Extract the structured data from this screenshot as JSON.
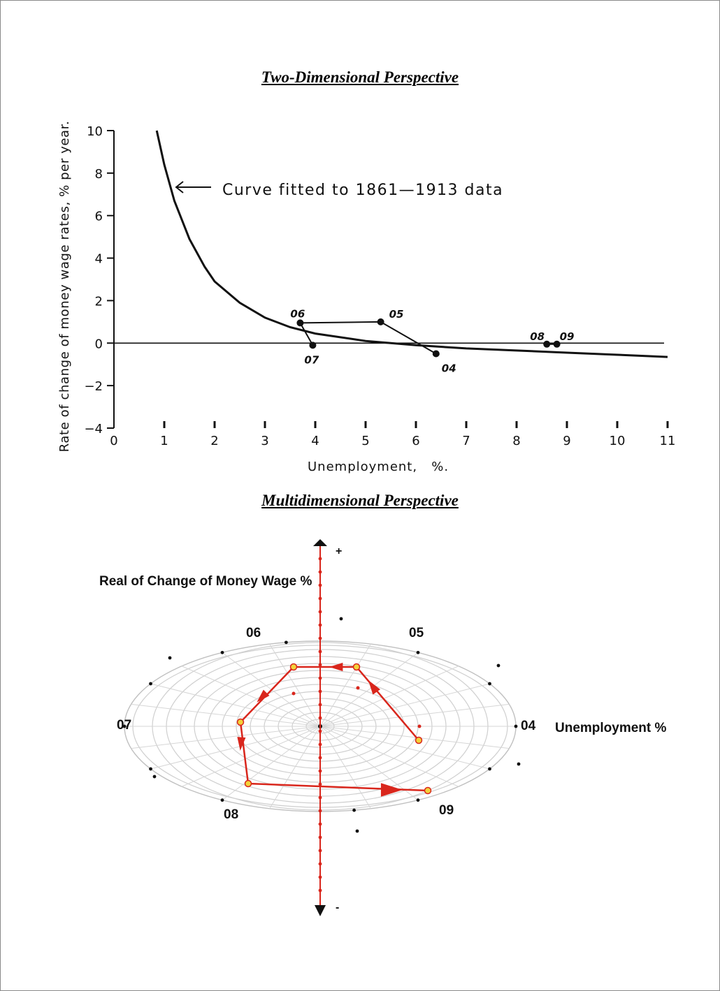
{
  "titles": {
    "top": "Two-Dimensional Perspective",
    "bottom": "Multidimensional Perspective"
  },
  "chart_data": [
    {
      "type": "line",
      "title": "Two-Dimensional Perspective",
      "xlabel": "Unemployment,   %.",
      "ylabel": "Rate of change of money wage rates, % per year.",
      "xlim": [
        0,
        11
      ],
      "ylim": [
        -4,
        10
      ],
      "x_ticks": [
        0,
        1,
        2,
        3,
        4,
        5,
        6,
        7,
        8,
        9,
        10,
        11
      ],
      "y_ticks": [
        10,
        8,
        6,
        4,
        2,
        0,
        -2,
        -4
      ],
      "grid": false,
      "annotation": "Curve fitted to 1861—1913 data",
      "fitted_curve": {
        "x": [
          0.85,
          1.0,
          1.2,
          1.5,
          1.8,
          2.0,
          2.5,
          3.0,
          3.5,
          4.0,
          5.0,
          6.0,
          7.0,
          8.0,
          9.0,
          10.0,
          11.0
        ],
        "y": [
          10.0,
          8.4,
          6.7,
          4.9,
          3.6,
          2.9,
          1.9,
          1.2,
          0.75,
          0.45,
          0.1,
          -0.1,
          -0.25,
          -0.35,
          -0.45,
          -0.55,
          -0.65
        ]
      },
      "observations": [
        {
          "label": "04",
          "x": 6.4,
          "y": -0.5
        },
        {
          "label": "05",
          "x": 5.3,
          "y": 1.0
        },
        {
          "label": "06",
          "x": 3.7,
          "y": 0.95
        },
        {
          "label": "07",
          "x": 3.95,
          "y": -0.1
        },
        {
          "label": "08",
          "x": 8.6,
          "y": -0.05
        },
        {
          "label": "09",
          "x": 8.8,
          "y": -0.05
        }
      ]
    },
    {
      "type": "scatter",
      "title": "Multidimensional Perspective",
      "ylabel": "Real of Change of Money Wage %",
      "xlabel": "Unemployment %",
      "y_axis_ends": {
        "top": "+",
        "bottom": "-"
      },
      "year_labels": [
        "04",
        "05",
        "06",
        "07",
        "08",
        "09"
      ],
      "path_order": [
        "04",
        "05",
        "06",
        "07",
        "08",
        "09"
      ],
      "path_color": "#d9261c",
      "point_fill": "#f2d23a"
    }
  ]
}
